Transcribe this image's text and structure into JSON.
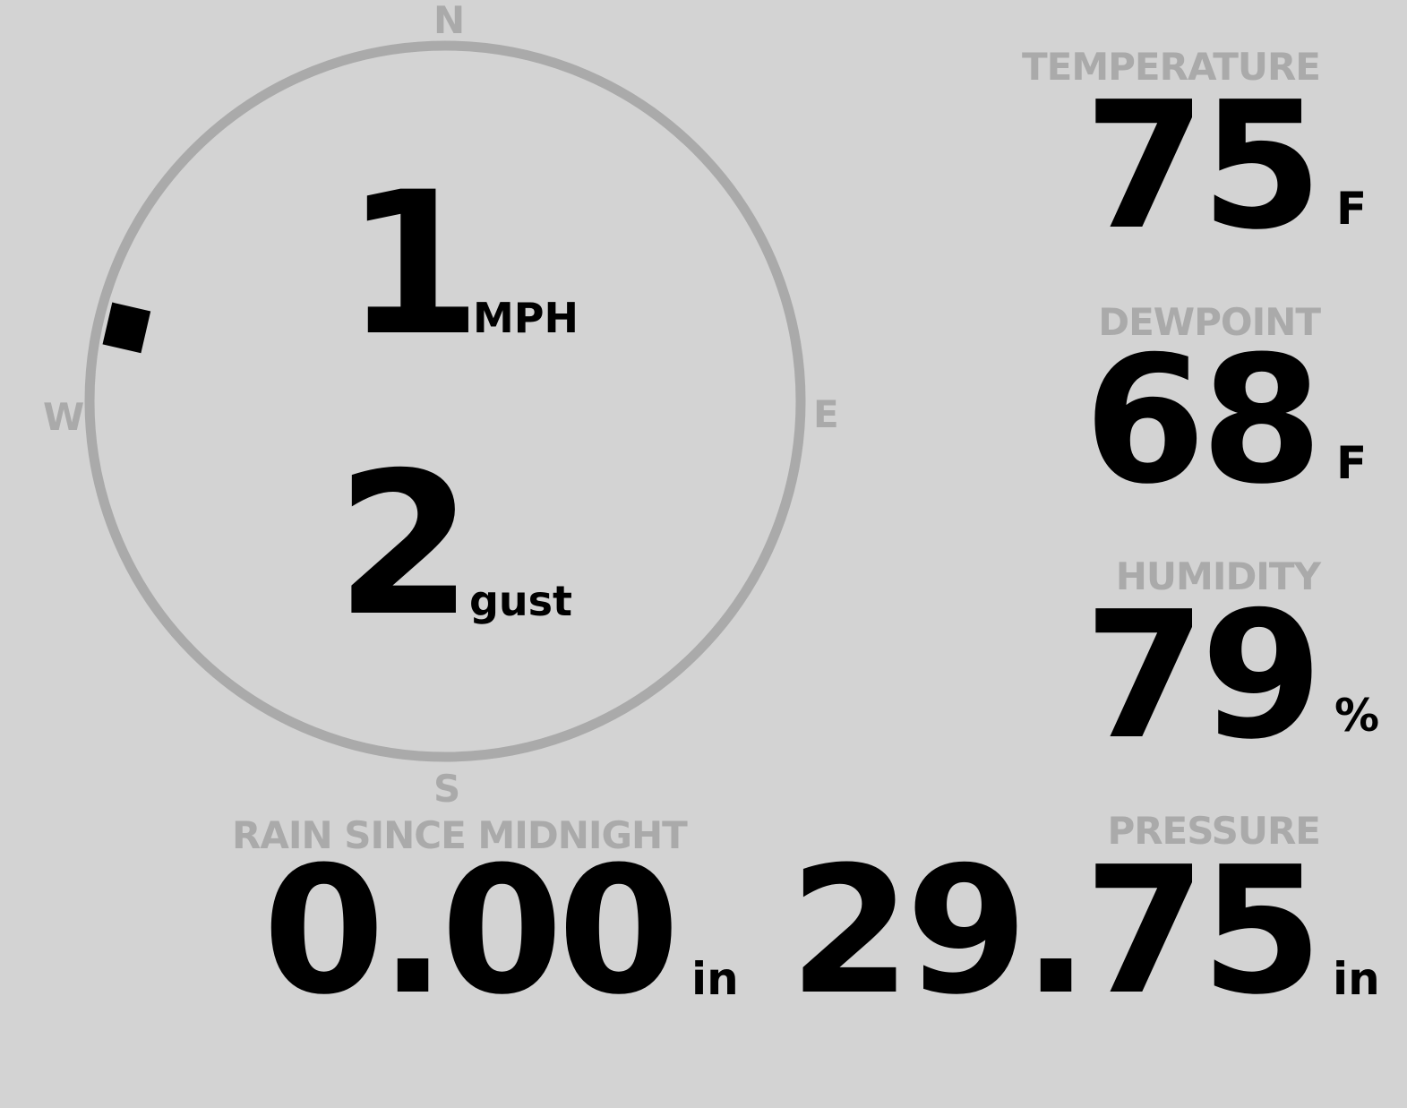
{
  "compass": {
    "labels": {
      "n": "N",
      "e": "E",
      "s": "S",
      "w": "W"
    },
    "wind_direction_deg": 283,
    "ring_color": "#aaaaaa",
    "marker_color": "#000000"
  },
  "wind": {
    "speed": "1",
    "speed_unit": "MPH",
    "gust": "2",
    "gust_unit": "gust"
  },
  "temperature": {
    "label": "TEMPERATURE",
    "value": "75",
    "unit": "F"
  },
  "dewpoint": {
    "label": "DEWPOINT",
    "value": "68",
    "unit": "F"
  },
  "humidity": {
    "label": "HUMIDITY",
    "value": "79",
    "unit": "%"
  },
  "pressure": {
    "label": "PRESSURE",
    "value": "29.75",
    "unit": "in"
  },
  "rain": {
    "label": "RAIN SINCE MIDNIGHT",
    "value": "0.00",
    "unit": "in"
  },
  "colors": {
    "background": "#d3d3d3",
    "label": "#aaaaaa",
    "value": "#000000"
  }
}
